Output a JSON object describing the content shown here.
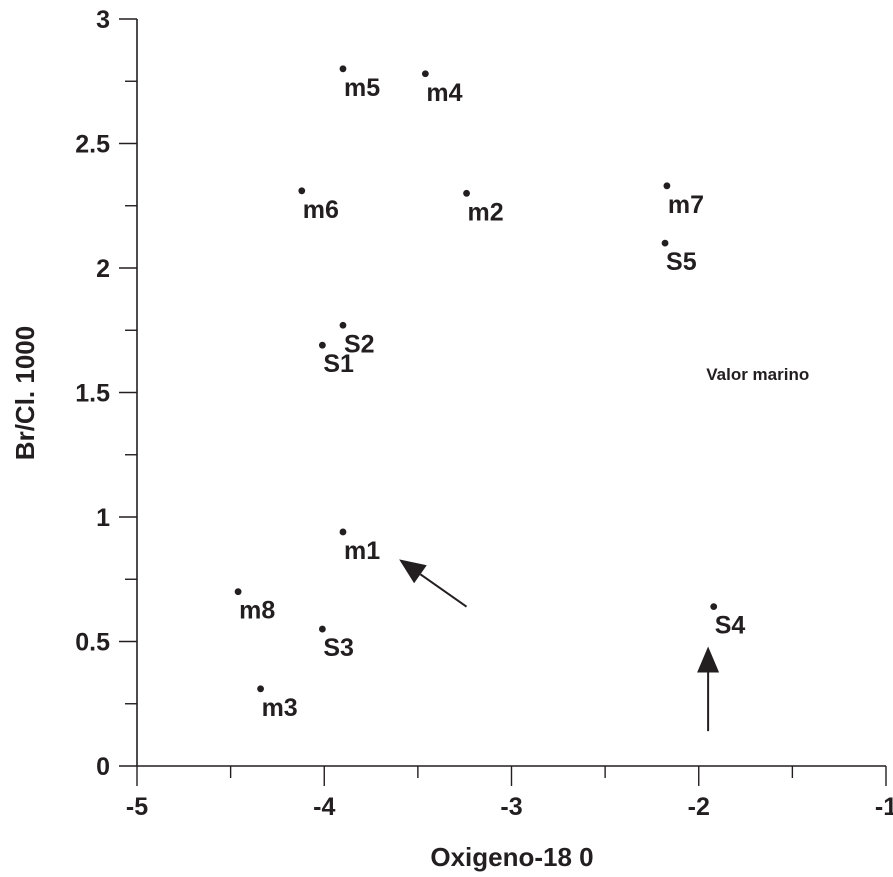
{
  "chart_data": {
    "type": "scatter",
    "xlabel": "Oxigeno-18 0",
    "ylabel": "Br/Cl. 1000",
    "xlim": [
      -5,
      -1
    ],
    "ylim": [
      0,
      3
    ],
    "x_ticks": [
      -5,
      -4,
      -3,
      -2,
      -1
    ],
    "y_ticks": [
      0,
      0.5,
      1,
      1.5,
      2,
      2.5,
      3
    ],
    "x_tick_labels": [
      "-5",
      "-4",
      "-3",
      "-2",
      "-1"
    ],
    "y_tick_labels": [
      "0",
      "0.5",
      "1",
      "1.5",
      "2",
      "2.5",
      "3"
    ],
    "grid": false,
    "points": [
      {
        "label": "m5",
        "x": -3.9,
        "y": 2.8
      },
      {
        "label": "m4",
        "x": -3.46,
        "y": 2.78
      },
      {
        "label": "m6",
        "x": -4.12,
        "y": 2.31
      },
      {
        "label": "m2",
        "x": -3.24,
        "y": 2.3
      },
      {
        "label": "m7",
        "x": -2.17,
        "y": 2.33
      },
      {
        "label": "S5",
        "x": -2.18,
        "y": 2.1
      },
      {
        "label": "S2",
        "x": -3.9,
        "y": 1.77
      },
      {
        "label": "S1",
        "x": -4.01,
        "y": 1.69
      },
      {
        "label": "m1",
        "x": -3.9,
        "y": 0.94
      },
      {
        "label": "m8",
        "x": -4.46,
        "y": 0.7
      },
      {
        "label": "S3",
        "x": -4.01,
        "y": 0.55
      },
      {
        "label": "S4",
        "x": -1.92,
        "y": 0.64
      },
      {
        "label": "m3",
        "x": -4.34,
        "y": 0.31
      }
    ],
    "annotations": [
      {
        "text": "Valor marino",
        "x": -1.96,
        "y": 1.55
      }
    ],
    "arrows": [
      {
        "from": [
          -3.24,
          0.64
        ],
        "to": [
          -3.6,
          0.83
        ]
      },
      {
        "from": [
          -1.95,
          0.14
        ],
        "to": [
          -1.95,
          0.48
        ]
      }
    ]
  }
}
